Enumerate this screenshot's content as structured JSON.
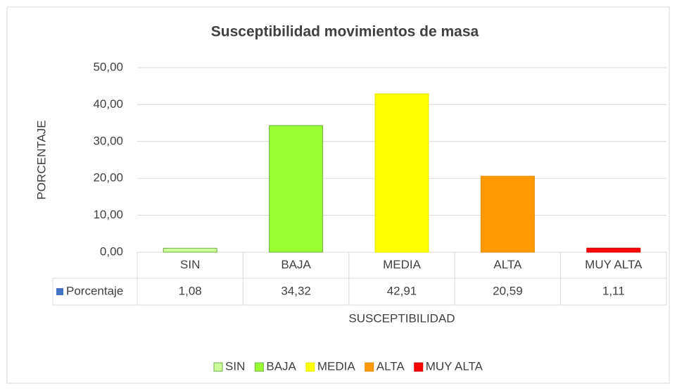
{
  "chart_data": {
    "type": "bar",
    "title": "Susceptibilidad movimientos de masa",
    "ylabel": "PORCENTAJE",
    "xlabel": "SUSCEPTIBILIDAD",
    "categories": [
      "SIN",
      "BAJA",
      "MEDIA",
      "ALTA",
      "MUY ALTA"
    ],
    "category_colors": [
      "#ccff99",
      "#99ff33",
      "#ffff00",
      "#ff9900",
      "#ff0000"
    ],
    "series": [
      {
        "name": "Porcentaje",
        "color": "#4472c4",
        "values": [
          1.08,
          34.32,
          42.91,
          20.59,
          1.11
        ],
        "value_labels": [
          "1,08",
          "34,32",
          "42,91",
          "20,59",
          "1,11"
        ]
      }
    ],
    "ylim": [
      0,
      50
    ],
    "yticks": [
      {
        "value": 0,
        "label": "0,00"
      },
      {
        "value": 10,
        "label": "10,00"
      },
      {
        "value": 20,
        "label": "20,00"
      },
      {
        "value": 30,
        "label": "30,00"
      },
      {
        "value": 40,
        "label": "40,00"
      },
      {
        "value": 50,
        "label": "50,00"
      }
    ],
    "grid": true,
    "legend": "bottom"
  }
}
